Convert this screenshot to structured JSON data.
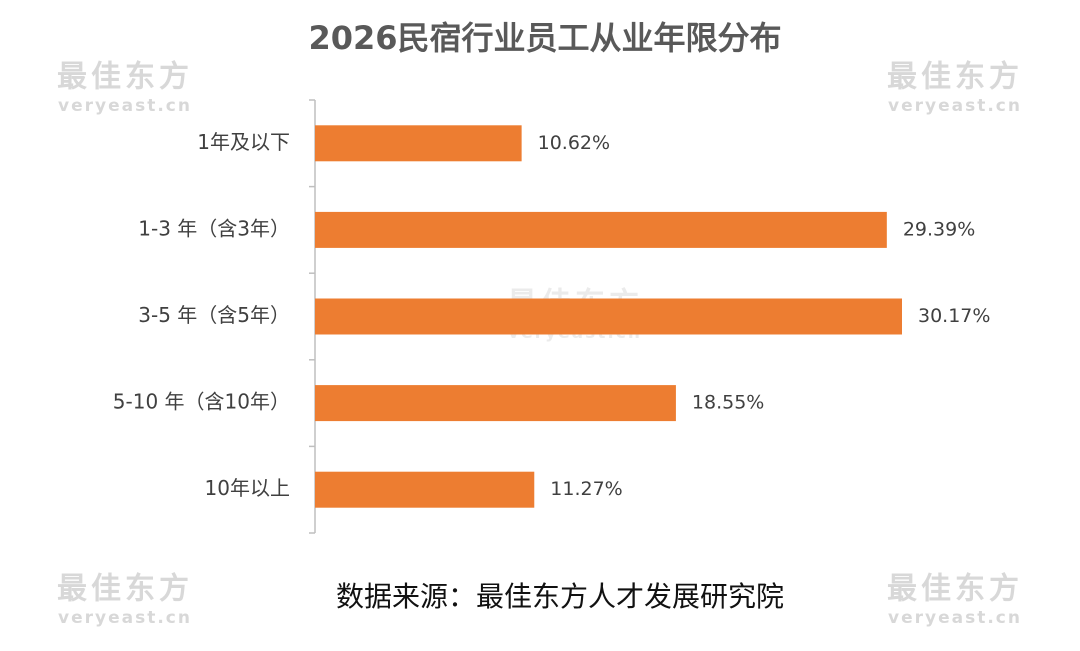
{
  "chart_data": {
    "type": "bar",
    "orientation": "horizontal",
    "title": "2026民宿行业员工从业年限分布",
    "categories": [
      "1年及以下",
      "1-3 年（含3年）",
      "3-5 年（含5年）",
      "5-10 年（含10年）",
      "10年以上"
    ],
    "values": [
      10.62,
      29.39,
      30.17,
      18.55,
      11.27
    ],
    "value_labels": [
      "10.62%",
      "29.39%",
      "30.17%",
      "18.55%",
      "11.27%"
    ],
    "color": "#ed7d31",
    "source": "数据来源：最佳东方人才发展研究院"
  },
  "watermark": {
    "brand": "最佳东方",
    "url": "veryeast.cn"
  }
}
